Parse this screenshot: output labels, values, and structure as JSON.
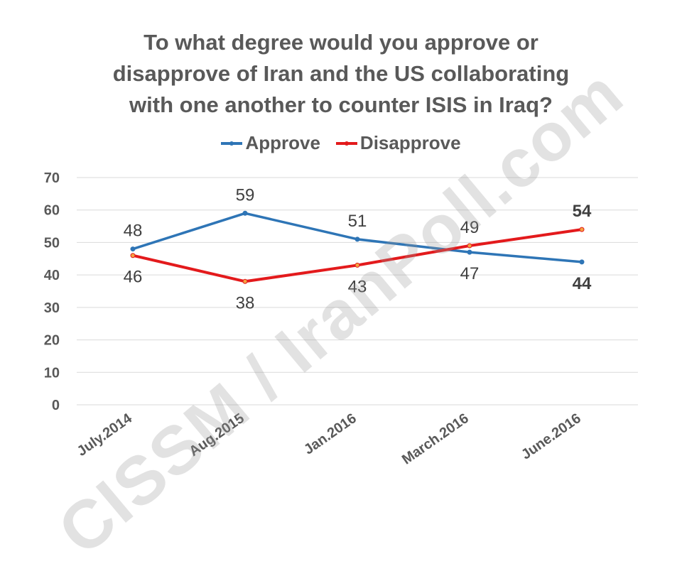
{
  "chart_data": {
    "type": "line",
    "title_lines": [
      "To what degree would you approve or",
      "disapprove of Iran and the US collaborating",
      "with one another to counter ISIS in Iraq?"
    ],
    "categories": [
      "July.2014",
      "Aug.2015",
      "Jan.2016",
      "March.2016",
      "June.2016"
    ],
    "series": [
      {
        "name": "Approve",
        "color": "#2E75B6",
        "values": [
          48,
          59,
          51,
          47,
          44
        ]
      },
      {
        "name": "Disapprove",
        "color": "#E31A1C",
        "values": [
          46,
          38,
          43,
          49,
          54
        ]
      }
    ],
    "ylim": [
      0,
      70
    ],
    "yticks": [
      0,
      10,
      20,
      30,
      40,
      50,
      60,
      70
    ],
    "grid": true,
    "legend_position": "top"
  },
  "watermark": "CISSM / IranPoll.com"
}
